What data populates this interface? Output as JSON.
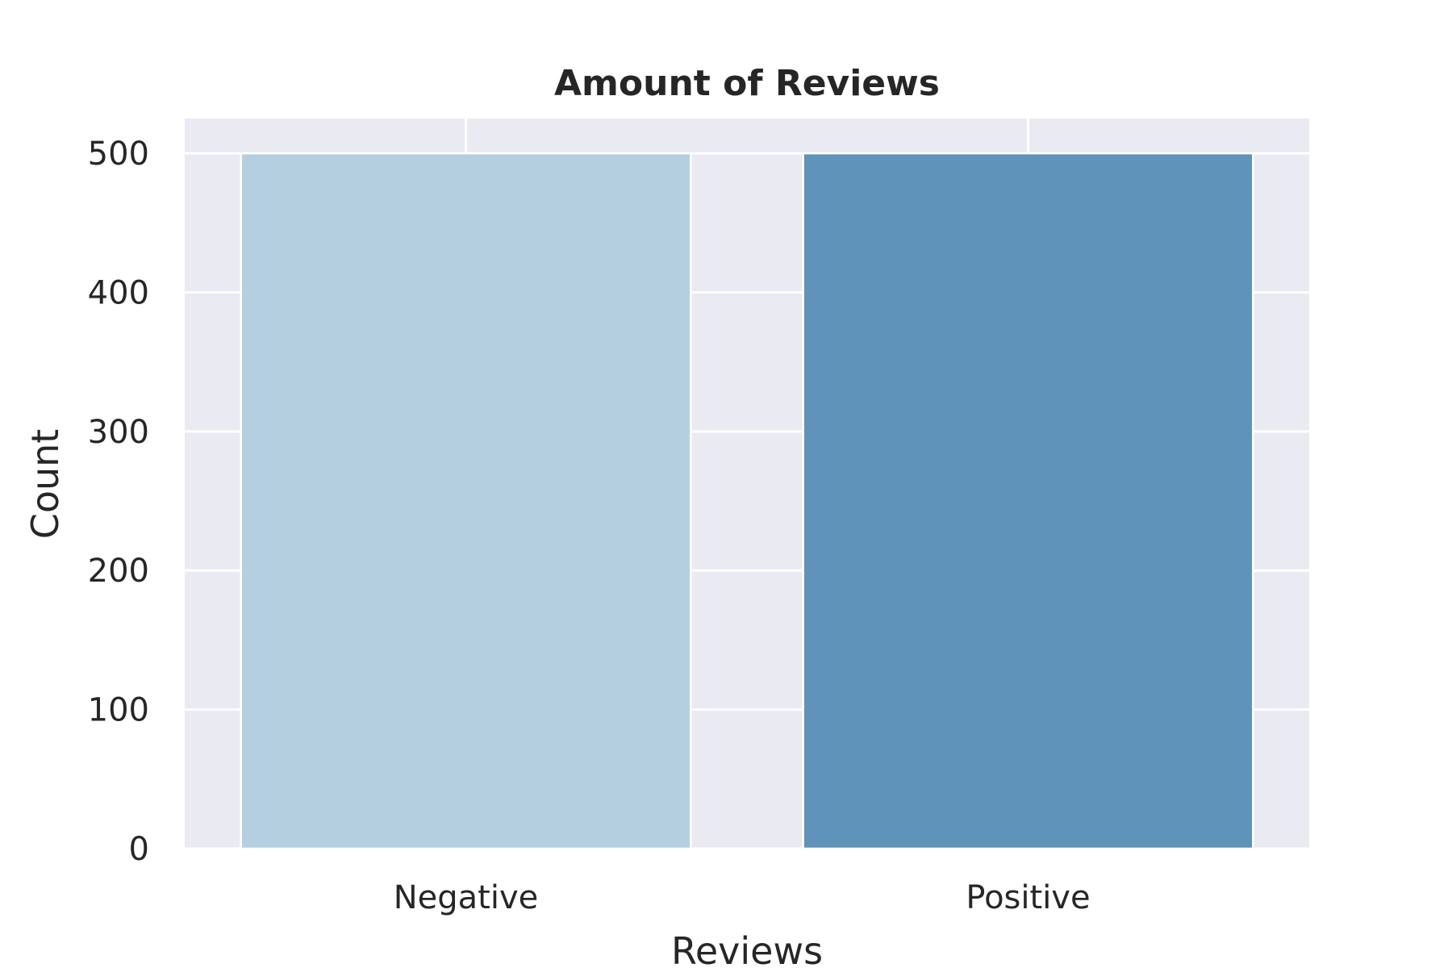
{
  "chart_data": {
    "type": "bar",
    "title": "Amount of Reviews",
    "xlabel": "Reviews",
    "ylabel": "Count",
    "categories": [
      "Negative",
      "Positive"
    ],
    "values": [
      500,
      500
    ],
    "bar_colors": [
      "#b4cfe0",
      "#5f93ba"
    ],
    "ylim": [
      0,
      525
    ],
    "yticks": [
      0,
      100,
      200,
      300,
      400,
      500
    ],
    "grid": true,
    "background": "#eaeaf2"
  }
}
